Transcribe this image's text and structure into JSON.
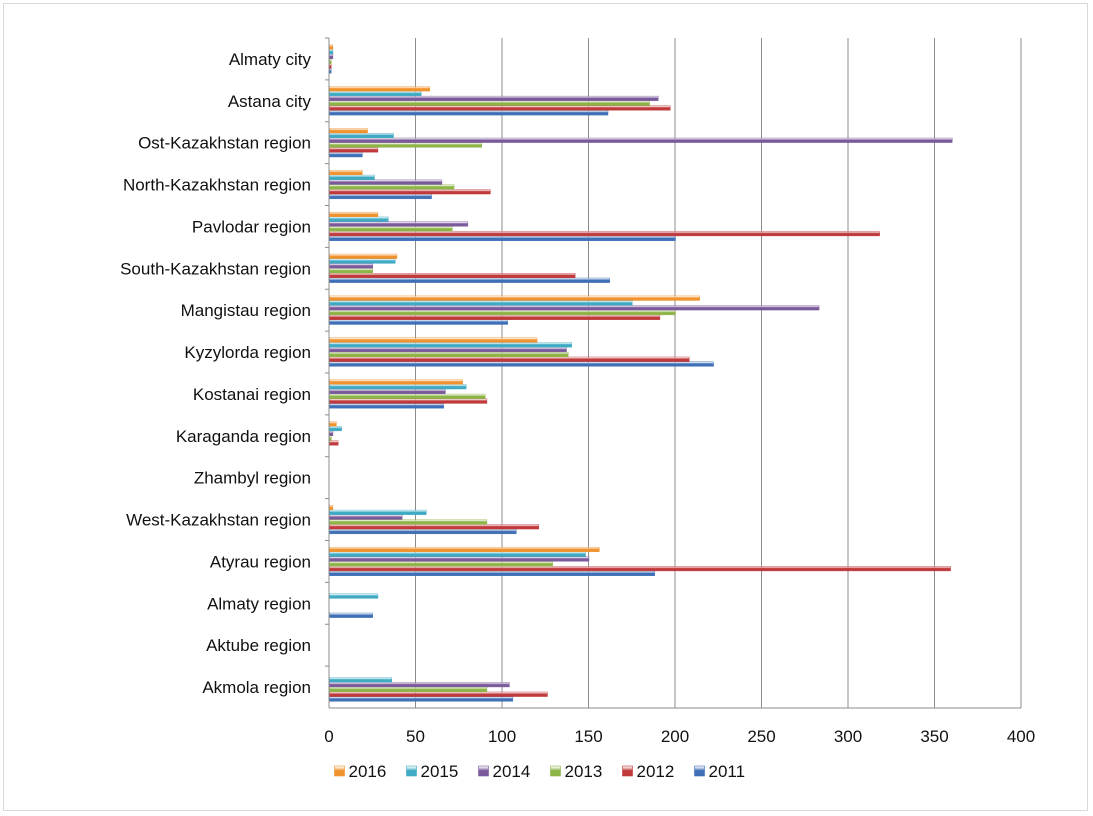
{
  "chart_data": {
    "type": "bar",
    "orientation": "horizontal",
    "categories": [
      "Akmola region",
      "Aktube region",
      "Almaty region",
      "Atyrau region",
      "West-Kazakhstan region",
      "Zhambyl region",
      "Karaganda region",
      "Kostanai region",
      "Kyzylorda region",
      "Mangistau region",
      "South-Kazakhstan region",
      "Pavlodar region",
      "North-Kazakhstan region",
      "Ost-Kazakhstan region",
      "Astana city",
      "Almaty city"
    ],
    "series": [
      {
        "name": "2011",
        "color": "#3F6FB6",
        "values": [
          106,
          0,
          25,
          188,
          108,
          0,
          0,
          66,
          222,
          103,
          162,
          200,
          59,
          19,
          161,
          1
        ]
      },
      {
        "name": "2012",
        "color": "#C0393B",
        "values": [
          126,
          0,
          0,
          359,
          121,
          0,
          5,
          91,
          208,
          191,
          142,
          318,
          93,
          28,
          197,
          1
        ]
      },
      {
        "name": "2013",
        "color": "#8DB446",
        "values": [
          91,
          0,
          0,
          129,
          91,
          0,
          1,
          90,
          138,
          200,
          25,
          71,
          72,
          88,
          185,
          1
        ]
      },
      {
        "name": "2014",
        "color": "#7B5A9C",
        "values": [
          104,
          0,
          0,
          150,
          42,
          0,
          2,
          67,
          137,
          283,
          25,
          80,
          65,
          360,
          190,
          2
        ]
      },
      {
        "name": "2015",
        "color": "#3FAAC3",
        "values": [
          36,
          0,
          28,
          148,
          56,
          0,
          7,
          79,
          140,
          175,
          38,
          34,
          26,
          37,
          53,
          2
        ]
      },
      {
        "name": "2016",
        "color": "#F0932E",
        "values": [
          0,
          0,
          0,
          156,
          2,
          0,
          4,
          77,
          120,
          214,
          39,
          28,
          19,
          22,
          58,
          2
        ]
      }
    ],
    "xlim": [
      0,
      400
    ],
    "x_ticks": [
      "0",
      "50",
      "100",
      "150",
      "200",
      "250",
      "300",
      "350",
      "400"
    ],
    "grid": "vertical major gridlines",
    "legend_position": "bottom",
    "legend_order": [
      "2016",
      "2015",
      "2014",
      "2013",
      "2012",
      "2011"
    ],
    "title": "",
    "xlabel": "",
    "ylabel": ""
  }
}
